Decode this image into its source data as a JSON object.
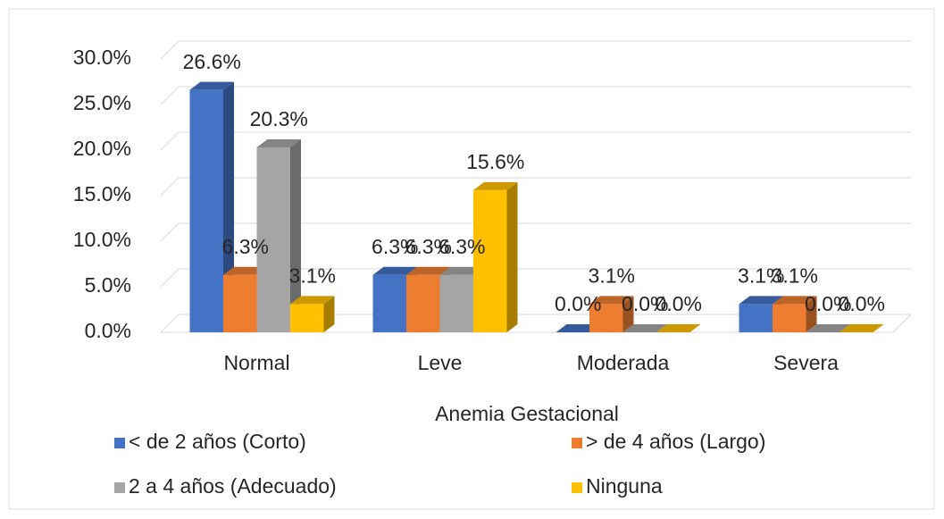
{
  "chart_data": {
    "type": "bar3d",
    "x_label": "Anemia Gestacional",
    "categories": [
      "Normal",
      "Leve",
      "Moderada",
      "Severa"
    ],
    "series": [
      {
        "name": "< de 2 años (Corto)",
        "color": "#4472c4",
        "values": [
          26.6,
          6.3,
          0.0,
          3.1
        ],
        "value_labels": [
          "26.6%",
          "6.3%",
          "0.0%",
          "3.1%"
        ]
      },
      {
        "name": "> de 4 años (Largo)",
        "color": "#ed7d31",
        "values": [
          6.3,
          6.3,
          3.1,
          3.1
        ],
        "value_labels": [
          "6.3%",
          "6.3%",
          "3.1%",
          "3.1%"
        ]
      },
      {
        "name": "2 a 4 años (Adecuado)",
        "color": "#a5a5a5",
        "values": [
          20.3,
          6.3,
          0.0,
          0.0
        ],
        "value_labels": [
          "20.3%",
          "6.3%",
          "0.0%",
          "0.0%"
        ]
      },
      {
        "name": "Ninguna",
        "color": "#ffc000",
        "values": [
          3.1,
          15.6,
          0.0,
          0.0
        ],
        "value_labels": [
          "3.1%",
          "15.6%",
          "0.0%",
          "0.0%"
        ]
      }
    ],
    "ylim": [
      0,
      30
    ],
    "yticks": [
      {
        "value": 0,
        "label": "0.0%"
      },
      {
        "value": 5,
        "label": "5.0%"
      },
      {
        "value": 10,
        "label": "10.0%"
      },
      {
        "value": 15,
        "label": "15.0%"
      },
      {
        "value": 20,
        "label": "20.0%"
      },
      {
        "value": 25,
        "label": "25.0%"
      },
      {
        "value": 30,
        "label": "30.0%"
      }
    ],
    "grid": true,
    "legend": "bottom"
  }
}
